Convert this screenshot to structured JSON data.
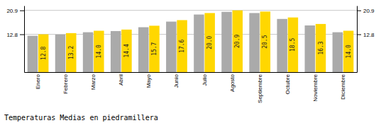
{
  "chart_data": {
    "type": "bar",
    "title": "Temperaturas Medias en piedramillera",
    "categories": [
      "Enero",
      "Febrero",
      "Marzo",
      "Abril",
      "Mayo",
      "Junio",
      "Julio",
      "Agosto",
      "Septiembre",
      "Octubre",
      "Noviembre",
      "Diciembre"
    ],
    "series": [
      {
        "color": "#AAAAAA",
        "values": [
          12.3,
          12.7,
          13.5,
          13.9,
          15.2,
          17.1,
          19.5,
          20.4,
          20.0,
          18.0,
          15.8,
          13.5
        ]
      },
      {
        "color": "#FFD700",
        "values": [
          12.8,
          13.2,
          14.0,
          14.4,
          15.7,
          17.6,
          20.0,
          20.9,
          20.5,
          18.5,
          16.3,
          14.0
        ],
        "data_labels": true,
        "value_labels": [
          "12.8",
          "13.2",
          "14.0",
          "14.4",
          "15.7",
          "17.6",
          "20.0",
          "20.9",
          "20.5",
          "18.5",
          "16.3",
          "14.0"
        ]
      }
    ],
    "ylim": [
      0,
      22.5
    ],
    "yticks": [
      12.8,
      20.9
    ],
    "y2lim": [
      0,
      22.5
    ],
    "y2ticks": [
      12.8,
      20.9
    ],
    "grid": true
  }
}
